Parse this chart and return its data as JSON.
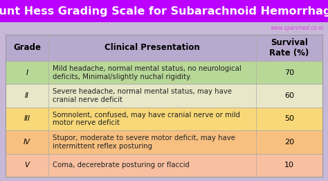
{
  "title": "Hunt Hess Grading Scale for Subarachnoid Hemorrhage",
  "title_bg": "#bb00ff",
  "title_color": "#ffffff",
  "watermark": "www.openmed.co.in",
  "watermark_color": "#dd44dd",
  "bg_color": "#c8b8d8",
  "header_bg": "#b8aace",
  "header_color": "#000000",
  "col_headers": [
    "Grade",
    "Clinical Presentation",
    "Survival\nRate (%)"
  ],
  "rows": [
    {
      "grade": "I",
      "presentation": "Mild headache, normal mental status, no neurological\ndeficits, Minimal/slightly nuchal rigidity.",
      "survival": "70",
      "row_color": "#b8d898"
    },
    {
      "grade": "II",
      "presentation": "Severe headache, normal mental status, may have\ncranial nerve deficit",
      "survival": "60",
      "row_color": "#e8e8c8"
    },
    {
      "grade": "III",
      "presentation": "Somnolent, confused, may have cranial nerve or mild\nmotor nerve deficit",
      "survival": "50",
      "row_color": "#f8d878"
    },
    {
      "grade": "IV",
      "presentation": "Stupor, moderate to severe motor deficit, may have\nintermittent reflex posturing",
      "survival": "20",
      "row_color": "#f8c080"
    },
    {
      "grade": "V",
      "presentation": "Coma, decerebrate posturing or flaccid",
      "survival": "10",
      "row_color": "#f8c0a0"
    }
  ],
  "title_fontsize": 11.5,
  "header_fontsize": 8.5,
  "cell_fontsize": 7.5,
  "watermark_fontsize": 5.5
}
